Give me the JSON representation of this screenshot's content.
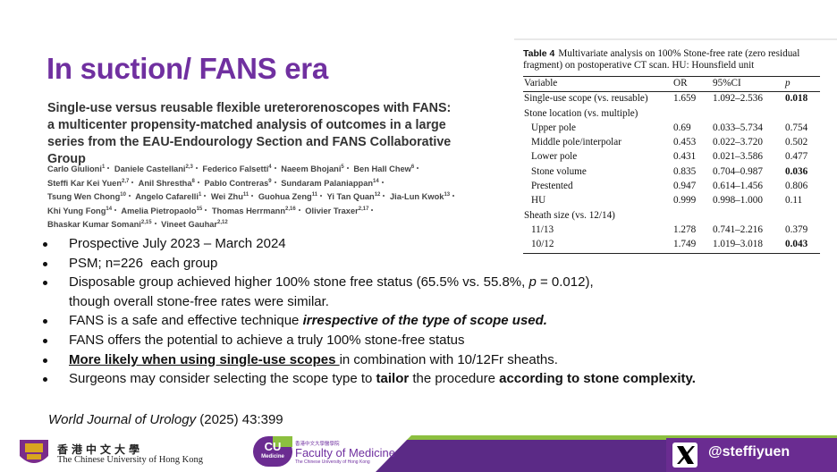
{
  "slide_title": "In suction/ FANS era",
  "paper": {
    "title": "Single-use versus reusable flexible ureterorenoscopes with FANS: a multicenter propensity-matched analysis of outcomes in a large series from the EAU-Endourology Section and FANS Collaborative Group",
    "authors": [
      {
        "name": "Carlo Giulioni",
        "affil": "1"
      },
      {
        "name": "Daniele Castellani",
        "affil": "2,3"
      },
      {
        "name": "Federico Falsetti",
        "affil": "4"
      },
      {
        "name": "Naeem Bhojani",
        "affil": "5"
      },
      {
        "name": "Ben Hall Chew",
        "affil": "6"
      },
      {
        "name": "Steffi Kar Kei Yuen",
        "affil": "2,7"
      },
      {
        "name": "Anil Shrestha",
        "affil": "8"
      },
      {
        "name": "Pablo Contreras",
        "affil": "9"
      },
      {
        "name": "Sundaram Palaniappan",
        "affil": "14"
      },
      {
        "name": "Tsung Wen Chong",
        "affil": "10"
      },
      {
        "name": "Angelo Cafarelli",
        "affil": "1"
      },
      {
        "name": "Wei Zhu",
        "affil": "11"
      },
      {
        "name": "Guohua Zeng",
        "affil": "11"
      },
      {
        "name": "Yi Tan Quan",
        "affil": "12"
      },
      {
        "name": "Jia-Lun Kwok",
        "affil": "13"
      },
      {
        "name": "Khi Yung Fong",
        "affil": "14"
      },
      {
        "name": "Amelia Pietropaolo",
        "affil": "15"
      },
      {
        "name": "Thomas Herrmann",
        "affil": "2,16"
      },
      {
        "name": "Olivier Traxer",
        "affil": "2,17"
      },
      {
        "name": "Bhaskar Kumar Somani",
        "affil": "2,15"
      },
      {
        "name": "Vineet Gauhar",
        "affil": "2,12"
      }
    ]
  },
  "table": {
    "label": "Table 4",
    "caption": "Multivariate analysis on 100% Stone-free rate (zero residual fragment) on postoperative CT scan. HU: Hounsfield unit",
    "header": [
      "Variable",
      "OR",
      "95%CI",
      "p"
    ],
    "rows": [
      {
        "cells": [
          "Single-use scope (vs. reusable)",
          "1.659",
          "1.092–2.536",
          "0.018"
        ],
        "indent": false,
        "bold_p": true
      },
      {
        "cells": [
          "Stone location (vs. multiple)"
        ],
        "indent": false,
        "bold_p": false
      },
      {
        "cells": [
          "Upper pole",
          "0.69",
          "0.033–5.734",
          "0.754"
        ],
        "indent": true,
        "bold_p": false
      },
      {
        "cells": [
          "Middle pole/interpolar",
          "0.453",
          "0.022–3.720",
          "0.502"
        ],
        "indent": true,
        "bold_p": false
      },
      {
        "cells": [
          "Lower pole",
          "0.431",
          "0.021–3.586",
          "0.477"
        ],
        "indent": true,
        "bold_p": false
      },
      {
        "cells": [
          "Stone volume",
          "0.835",
          "0.704–0.987",
          "0.036"
        ],
        "indent": true,
        "bold_p": true
      },
      {
        "cells": [
          "Prestented",
          "0.947",
          "0.614–1.456",
          "0.806"
        ],
        "indent": true,
        "bold_p": false
      },
      {
        "cells": [
          "HU",
          "0.999",
          "0.998–1.000",
          "0.11"
        ],
        "indent": true,
        "bold_p": false
      },
      {
        "cells": [
          "Sheath size (vs. 12/14)"
        ],
        "indent": false,
        "bold_p": false
      },
      {
        "cells": [
          "11/13",
          "1.278",
          "0.741–2.216",
          "0.379"
        ],
        "indent": true,
        "bold_p": false
      },
      {
        "cells": [
          "10/12",
          "1.749",
          "1.019–3.018",
          "0.043"
        ],
        "indent": true,
        "bold_p": true
      }
    ]
  },
  "bullets": [
    {
      "lines": [
        [
          {
            "text": "Prospective July 2023 – March 2024",
            "style": "plain"
          }
        ]
      ]
    },
    {
      "lines": [
        [
          {
            "text": "PSM; n=226  each group",
            "style": "plain"
          }
        ]
      ]
    },
    {
      "lines": [
        [
          {
            "text": "Disposable group achieved higher 100% stone free status (65.5% vs. 55.8%, ",
            "style": "plain"
          },
          {
            "text": "p",
            "style": "italic"
          },
          {
            "text": " = 0.012),",
            "style": "plain"
          }
        ],
        [
          {
            "text": "though overall stone-free rates were similar.",
            "style": "plain"
          }
        ]
      ]
    },
    {
      "lines": [
        [
          {
            "text": "FANS is a safe and effective technique ",
            "style": "plain"
          },
          {
            "text": "irrespective of the type of scope used.",
            "style": "bold-italic"
          }
        ]
      ]
    },
    {
      "lines": [
        [
          {
            "text": "FANS offers the potential to achieve a truly 100% stone-free status",
            "style": "plain"
          }
        ]
      ]
    },
    {
      "lines": [
        [
          {
            "text": "More likely when using single-use scopes ",
            "style": "bold-underline"
          },
          {
            "text": "in combination with 10/12Fr sheaths.",
            "style": "plain"
          }
        ]
      ]
    },
    {
      "lines": [
        [
          {
            "text": "Surgeons may consider selecting the scope type to ",
            "style": "plain"
          },
          {
            "text": "tailor",
            "style": "bold"
          },
          {
            "text": " the procedure ",
            "style": "plain"
          },
          {
            "text": "according to stone complexity.",
            "style": "bold"
          }
        ]
      ]
    }
  ],
  "citation": {
    "journal": "World Journal of Urology",
    "detail": " (2025) 43:399"
  },
  "footer": {
    "cuhk_chinese": "香港中文大學",
    "cuhk_english": "The Chinese University of Hong Kong",
    "cu_logo_top": "CU",
    "cu_logo_bottom": "Medicine",
    "faculty_chinese": "香港中文大學醫學院",
    "faculty_name": "Faculty of Medicine",
    "faculty_english": "The Chinese University of Hong Kong",
    "handle": "@steffiyuen"
  }
}
